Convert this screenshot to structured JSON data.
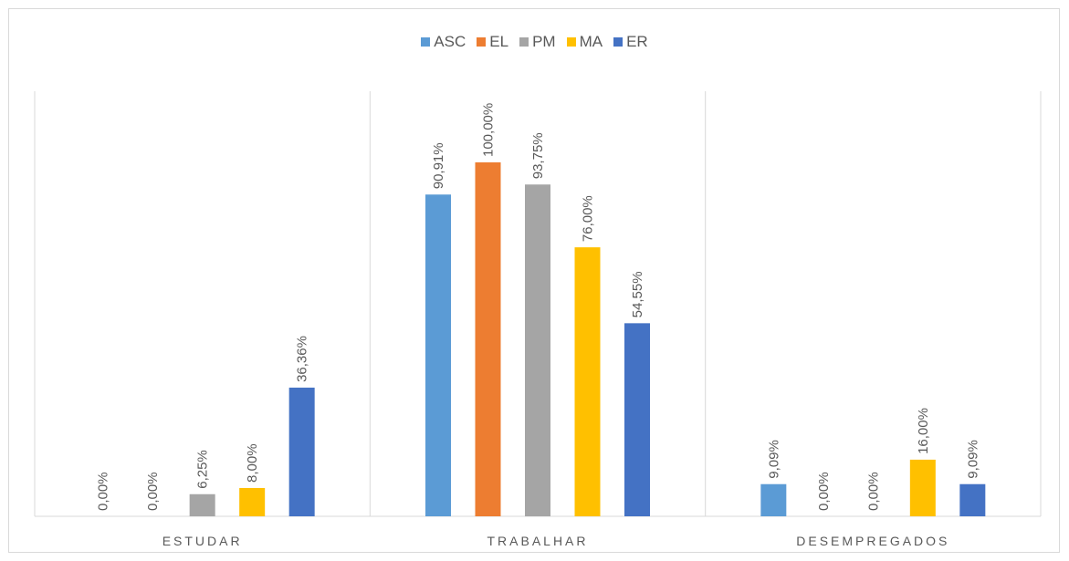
{
  "chart_data": {
    "type": "bar",
    "categories": [
      "ESTUDAR",
      "TRABALHAR",
      "DESEMPREGADOS"
    ],
    "series": [
      {
        "name": "ASC",
        "color": "#5b9bd5",
        "values": [
          0,
          90.91,
          9.09
        ],
        "labels": [
          "0,00%",
          "90,91%",
          "9,09%"
        ]
      },
      {
        "name": "EL",
        "color": "#ed7d31",
        "values": [
          0,
          100.0,
          0
        ],
        "labels": [
          "0,00%",
          "100,00%",
          "0,00%"
        ]
      },
      {
        "name": "PM",
        "color": "#a5a5a5",
        "values": [
          6.25,
          93.75,
          0
        ],
        "labels": [
          "6,25%",
          "93,75%",
          "0,00%"
        ]
      },
      {
        "name": "MA",
        "color": "#ffc000",
        "values": [
          8.0,
          76.0,
          16.0
        ],
        "labels": [
          "8,00%",
          "76,00%",
          "16,00%"
        ]
      },
      {
        "name": "ER",
        "color": "#4472c4",
        "values": [
          36.36,
          54.55,
          9.09
        ],
        "labels": [
          "36,36%",
          "54,55%",
          "9,09%"
        ]
      }
    ],
    "ylim": [
      0,
      100
    ],
    "legend_position": "top",
    "grid": false,
    "category_dividers": true
  }
}
